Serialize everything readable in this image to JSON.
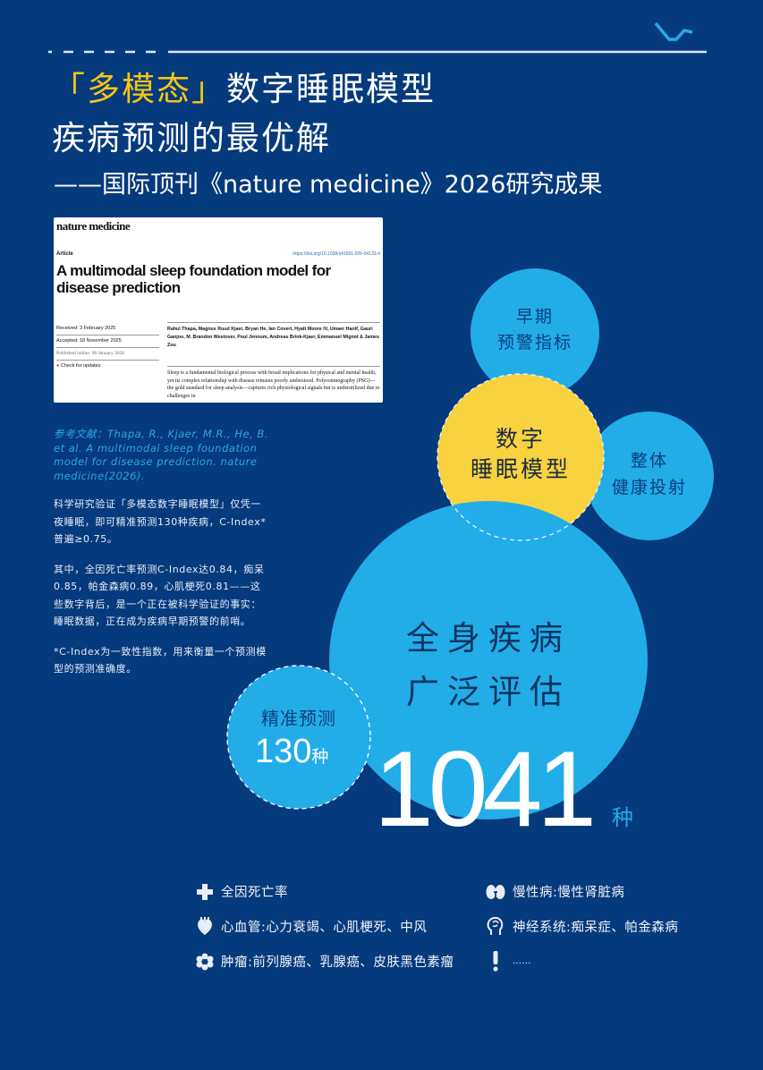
{
  "header": {
    "title_highlight": "「多模态」",
    "title_line1_rest": "数字睡眠模型",
    "title_line2": "疾病预测的最优解",
    "subtitle": "——国际顶刊《nature medicine》2026研究成果"
  },
  "paper": {
    "journal": "nature medicine",
    "type": "Article",
    "doi": "https://doi.org/10.1038/s41591-025-04133-4",
    "title": "A multimodal sleep foundation model for disease prediction",
    "received": "Received: 3 February 2025",
    "accepted": "Accepted: 18 November 2025",
    "published": "Published online: 06 January 2026",
    "check_updates": "Check for updates",
    "authors": "Rahul Thapa, Magnus Ruud Kjaer, Bryan He, Ian Covert, Hyatt Moore IV, Umaer Hanif, Gauri Ganjoo, M. Brandon Westover, Poul Jennum, Andreas Brink-Kjaer, Emmanuel Mignot & James Zou",
    "abstract": "Sleep is a fundamental biological process with broad implications for physical and mental health, yet its complex relationship with disease remains poorly understood. Polysomnography (PSG)—the gold standard for sleep analysis—captures rich physiological signals but is underutilized due to challenges in"
  },
  "reference": "参考文献：Thapa, R., Kjaer, M.R., He, B. et al. A multimodal sleep foundation model for disease prediction. nature medicine(2026).",
  "paragraphs": [
    "科学研究验证「多模态数字睡眠模型」仅凭一夜睡眠，即可精准预测130种疾病，C-Index*普遍≥0.75。",
    "其中，全因死亡率预测C-Index达0.84，痴呆0.85，帕金森病0.89，心肌梗死0.81——这些数字背后，是一个正在被科学验证的事实：睡眠数据，正在成为疾病早期预警的前哨。",
    "*C-Index为一致性指数，用来衡量一个预测模型的预测准确度。"
  ],
  "bubbles": {
    "early": [
      "早期",
      "预警指标"
    ],
    "core": [
      "数字",
      "睡眠模型"
    ],
    "health": [
      "整体",
      "健康投射"
    ],
    "whole": [
      "全身疾病",
      "广泛评估"
    ],
    "precise_label": "精准预测",
    "precise_count": "130",
    "precise_unit": "种",
    "total_count": "1041",
    "total_unit": "种"
  },
  "legend": [
    {
      "icon": "cross-icon",
      "text": "全因死亡率"
    },
    {
      "icon": "kidney-icon",
      "text": "慢性病:慢性肾脏病"
    },
    {
      "icon": "heart-icon",
      "text": "心血管:心力衰竭、心肌梗死、中风"
    },
    {
      "icon": "brain-head-icon",
      "text": "神经系统:痴呆症、帕金森病"
    },
    {
      "icon": "tumor-icon",
      "text": "肿瘤:前列腺癌、乳腺癌、皮肤黑色素瘤"
    },
    {
      "icon": "exclamation-icon",
      "text": "……"
    }
  ],
  "colors": {
    "background": "#053a7c",
    "accent_yellow": "#f8d33f",
    "bubble_blue": "#22ade9",
    "title_yellow": "#f5c518"
  }
}
